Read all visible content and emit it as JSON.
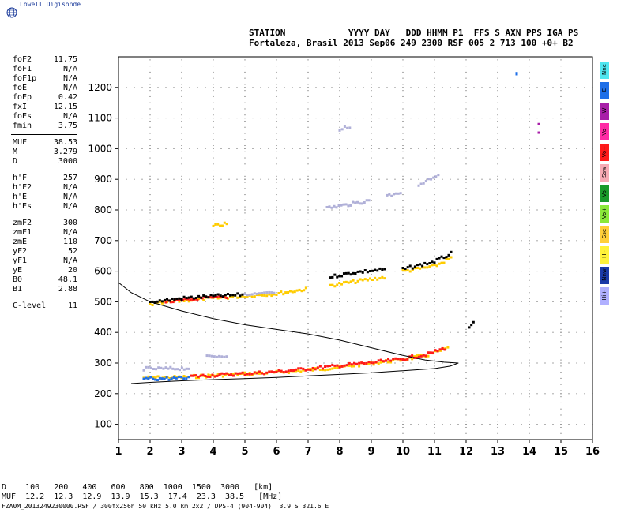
{
  "brand": {
    "name": "Lowell Digisonde"
  },
  "header": {
    "line1": "STATION            YYYY DAY   DDD HHMM P1  FFS S AXN PPS IGA PS",
    "line2": "Fortaleza, Brasil 2013 Sep06 249 2300 RSF 005 2 713 100 +0+ B2"
  },
  "params": [
    {
      "name": "foF2",
      "value": "11.75"
    },
    {
      "name": "foF1",
      "value": "N/A"
    },
    {
      "name": "foF1p",
      "value": "N/A"
    },
    {
      "name": "foE",
      "value": "N/A"
    },
    {
      "name": "foEp",
      "value": "0.42"
    },
    {
      "name": "fxI",
      "value": "12.15"
    },
    {
      "name": "foEs",
      "value": "N/A"
    },
    {
      "name": "fmin",
      "value": "3.75"
    },
    {
      "sep": true
    },
    {
      "name": "MUF",
      "value": "38.53"
    },
    {
      "name": "M",
      "value": "3.279"
    },
    {
      "name": "D",
      "value": "3000"
    },
    {
      "sep": true
    },
    {
      "name": "h'F",
      "value": "257"
    },
    {
      "name": "h'F2",
      "value": "N/A"
    },
    {
      "name": "h'E",
      "value": "N/A"
    },
    {
      "name": "h'Es",
      "value": "N/A"
    },
    {
      "sep": true
    },
    {
      "name": "zmF2",
      "value": "300"
    },
    {
      "name": "zmF1",
      "value": "N/A"
    },
    {
      "name": "zmE",
      "value": "110"
    },
    {
      "name": "yF2",
      "value": "52"
    },
    {
      "name": "yF1",
      "value": "N/A"
    },
    {
      "name": "yE",
      "value": "20"
    },
    {
      "name": "B0",
      "value": "48.1"
    },
    {
      "name": "B1",
      "value": "2.88"
    },
    {
      "sep": true
    },
    {
      "name": "C-level",
      "value": "11"
    }
  ],
  "legend": [
    {
      "label": "Nne",
      "color": "#4fe6f0"
    },
    {
      "label": "E",
      "color": "#1e6fe8"
    },
    {
      "label": "W",
      "color": "#a81fa8"
    },
    {
      "label": "Vo-",
      "color": "#ff2aa5"
    },
    {
      "label": "Vo+",
      "color": "#ff1a1a"
    },
    {
      "label": "Ssw",
      "color": "#f7aab4"
    },
    {
      "label": "Vo-",
      "color": "#1a9a2a"
    },
    {
      "label": "Vo+",
      "color": "#8ae83a"
    },
    {
      "label": "Sse",
      "color": "#ffcf3a"
    },
    {
      "label": "Hi-",
      "color": "#fff23a"
    },
    {
      "label": "Nnw",
      "color": "#1a3aa8"
    },
    {
      "label": "Hi+",
      "color": "#b0b0ff"
    }
  ],
  "muf_table": {
    "line1": "D    100   200   400   600   800  1000  1500  3000   [km]",
    "line2": "MUF  12.2  12.3  12.9  13.9  15.3  17.4  23.3  38.5   [MHz]"
  },
  "footer": "FZA0M_2013249230000.RSF / 300fx256h 50 kHz 5.0 km 2x2 / DPS-4 (904-904)  3.9 S 321.6 E",
  "chart_data": {
    "type": "scatter",
    "title": "",
    "xlabel": "",
    "ylabel": "",
    "xlim": [
      1,
      16
    ],
    "ylim": [
      50,
      1300
    ],
    "xticks": [
      1,
      2,
      3,
      4,
      5,
      6,
      7,
      8,
      9,
      10,
      11,
      12,
      13,
      14,
      15,
      16
    ],
    "yticks": [
      100,
      200,
      300,
      400,
      500,
      600,
      700,
      800,
      900,
      1000,
      1100,
      1200
    ],
    "grid": true,
    "series": [
      {
        "color": "#ffcc00",
        "traces": [
          [
            [
              1.8,
              250
            ],
            [
              3,
              252
            ],
            [
              4,
              258
            ],
            [
              5,
              263
            ],
            [
              6,
              268
            ],
            [
              7,
              276
            ],
            [
              8,
              285
            ],
            [
              9,
              298
            ],
            [
              10,
              310
            ],
            [
              10.8,
              325
            ],
            [
              11.5,
              350
            ]
          ],
          [
            [
              2,
              490
            ],
            [
              3,
              503
            ],
            [
              4,
              510
            ],
            [
              5,
              518
            ],
            [
              6,
              525
            ],
            [
              6.8,
              538
            ],
            [
              7,
              540
            ]
          ],
          [
            [
              7.7,
              552
            ],
            [
              8.5,
              565
            ],
            [
              9.5,
              580
            ]
          ],
          [
            [
              10,
              598
            ],
            [
              11,
              615
            ],
            [
              11.6,
              645
            ]
          ],
          [
            [
              4,
              745
            ],
            [
              4.5,
              755
            ]
          ]
        ]
      },
      {
        "color": "#ff1a1a",
        "traces": [
          [
            [
              3.3,
              255
            ],
            [
              4.2,
              260
            ],
            [
              5,
              264
            ],
            [
              6,
              270
            ],
            [
              7,
              280
            ],
            [
              8,
              290
            ],
            [
              9,
              300
            ],
            [
              10,
              312
            ],
            [
              10.8,
              328
            ],
            [
              11.4,
              350
            ]
          ],
          [
            [
              2.5,
              498
            ],
            [
              3.5,
              508
            ],
            [
              4.5,
              515
            ]
          ]
        ]
      },
      {
        "color": "#000000",
        "traces": [
          [
            [
              2,
              498
            ],
            [
              3,
              510
            ],
            [
              4,
              517
            ],
            [
              5,
              522
            ]
          ],
          [
            [
              7.7,
              580
            ],
            [
              8.5,
              595
            ],
            [
              9.5,
              605
            ]
          ],
          [
            [
              10,
              605
            ],
            [
              11,
              630
            ],
            [
              11.6,
              660
            ]
          ],
          [
            [
              12.1,
              410
            ],
            [
              12.3,
              440
            ]
          ]
        ]
      },
      {
        "color": "#b0b0d8",
        "traces": [
          [
            [
              1.8,
              280
            ],
            [
              2.5,
              280
            ],
            [
              3.3,
              282
            ]
          ],
          [
            [
              3.8,
              318
            ],
            [
              4.5,
              325
            ]
          ],
          [
            [
              7.6,
              805
            ],
            [
              8.2,
              815
            ],
            [
              9,
              830
            ]
          ],
          [
            [
              10.5,
              880
            ],
            [
              11.2,
              920
            ]
          ],
          [
            [
              8,
              1060
            ],
            [
              8.4,
              1075
            ]
          ],
          [
            [
              5,
              520
            ],
            [
              6,
              528
            ]
          ],
          [
            [
              9.5,
              845
            ],
            [
              10,
              850
            ]
          ]
        ]
      },
      {
        "color": "#1e6fe8",
        "traces": [
          [
            [
              1.8,
              248
            ],
            [
              2.6,
              248
            ],
            [
              3.3,
              250
            ]
          ],
          [
            [
              13.6,
              1245
            ],
            [
              13.6,
              1250
            ]
          ]
        ]
      },
      {
        "color": "#a81fa8",
        "traces": [
          [
            [
              14.3,
              1055
            ],
            [
              14.3,
              1100
            ]
          ]
        ]
      }
    ],
    "profile": {
      "color": "#000000",
      "points": [
        [
          1.0,
          563
        ],
        [
          1.4,
          530
        ],
        [
          2.0,
          500
        ],
        [
          3,
          470
        ],
        [
          4,
          445
        ],
        [
          5,
          425
        ],
        [
          6,
          410
        ],
        [
          7,
          395
        ],
        [
          8,
          375
        ],
        [
          9,
          350
        ],
        [
          10,
          325
        ],
        [
          10.7,
          310
        ],
        [
          11.3,
          303
        ],
        [
          11.75,
          300
        ],
        [
          11.5,
          290
        ],
        [
          11,
          282
        ],
        [
          10,
          275
        ],
        [
          9,
          268
        ],
        [
          8,
          263
        ],
        [
          7,
          258
        ],
        [
          6,
          253
        ],
        [
          5,
          249
        ],
        [
          4,
          246
        ],
        [
          3,
          242
        ],
        [
          2,
          237
        ],
        [
          1.4,
          233
        ]
      ]
    }
  }
}
